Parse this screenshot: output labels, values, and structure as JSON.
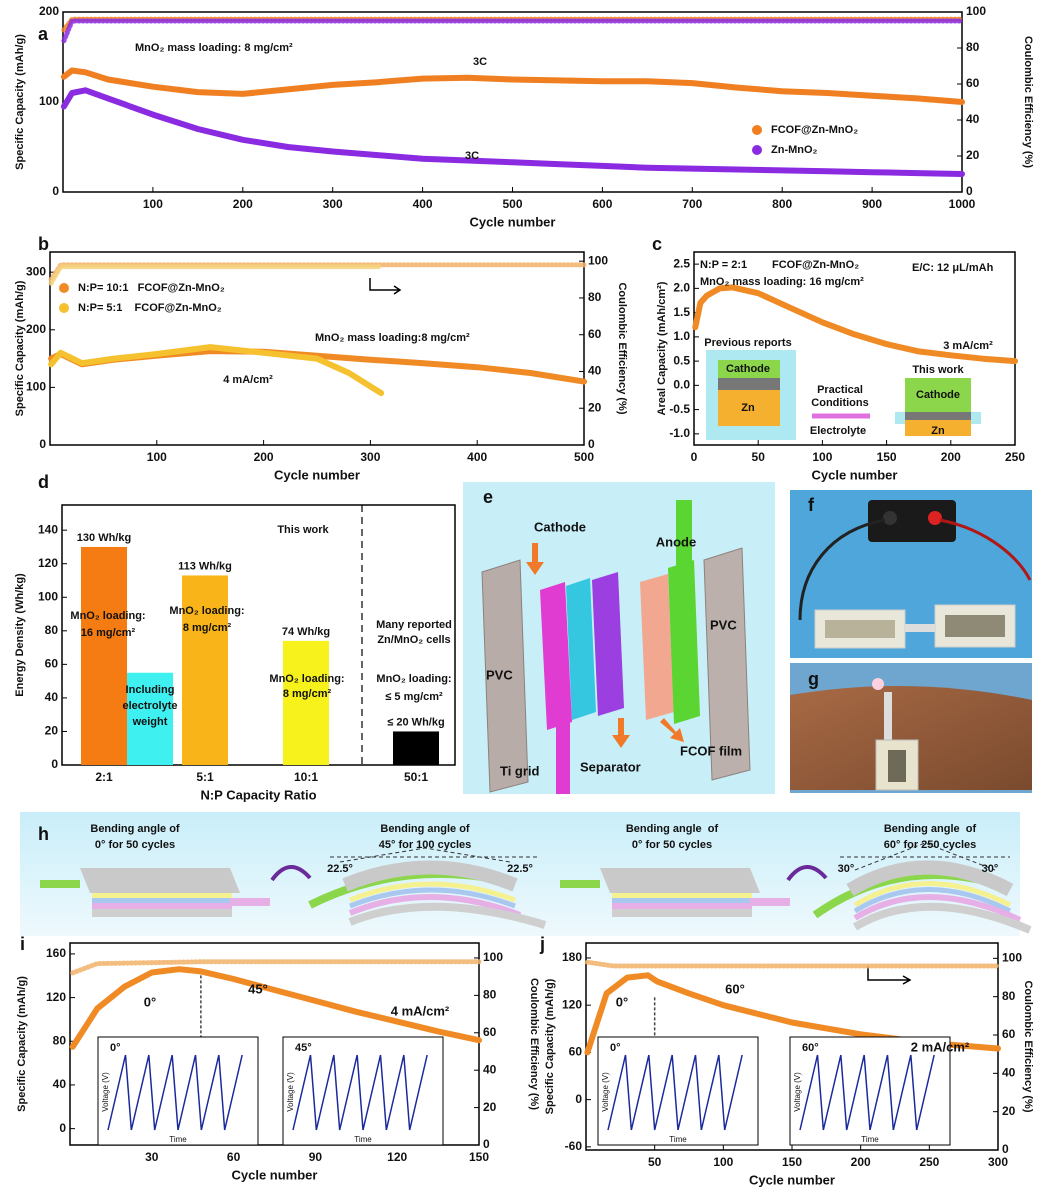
{
  "chart_data": [
    {
      "type": "line",
      "label": "a",
      "xlabel": "Cycle number",
      "ylabel": "Specific Capacity (mAh/g)",
      "y2label": "Coulombic Efficiency (%)",
      "xlim": [
        0,
        1000
      ],
      "xticks": [
        100,
        200,
        300,
        400,
        500,
        600,
        700,
        800,
        900,
        1000
      ],
      "ylim": [
        0,
        200
      ],
      "yticks": [
        0,
        100,
        200
      ],
      "y2lim": [
        0,
        100
      ],
      "y2ticks": [
        0,
        20,
        40,
        60,
        80,
        100
      ],
      "legend": "lower right",
      "x": [
        1,
        10,
        25,
        50,
        100,
        150,
        200,
        250,
        300,
        350,
        400,
        450,
        500,
        550,
        600,
        650,
        700,
        750,
        800,
        850,
        900,
        950,
        1000
      ],
      "series": [
        {
          "name": "FCOF@Zn-MnO₂",
          "color": "#f07f22",
          "values": [
            128,
            135,
            133,
            125,
            117,
            111,
            109,
            114,
            119,
            122,
            126,
            127,
            125,
            124,
            123,
            123,
            121,
            116,
            112,
            110,
            107,
            104,
            100
          ]
        },
        {
          "name": "Zn-MnO₂",
          "color": "#8a2be2",
          "values": [
            95,
            110,
            113,
            104,
            86,
            70,
            58,
            50,
            45,
            41,
            37,
            35,
            33,
            31,
            29,
            27,
            26,
            25,
            24,
            23,
            22,
            21,
            20
          ]
        },
        {
          "axis": "y2",
          "color": "#f07f22",
          "x": [
            1,
            10,
            100,
            200,
            300,
            400,
            500,
            600,
            700,
            800,
            900,
            1000
          ],
          "values": [
            90,
            96,
            96,
            96,
            96,
            96,
            96,
            96,
            96,
            96,
            96,
            96
          ]
        },
        {
          "axis": "y2",
          "color": "#8a2be2",
          "x": [
            1,
            10,
            100,
            200,
            300,
            400,
            500,
            600,
            700,
            800,
            900,
            1000
          ],
          "values": [
            84,
            95,
            95,
            95,
            95,
            95,
            95,
            95,
            95,
            95,
            95,
            95
          ]
        }
      ],
      "annotations": [
        "MnO₂ mass loading: 8 mg/cm²",
        "3C",
        "3C"
      ]
    },
    {
      "type": "line",
      "label": "b",
      "xlabel": "Cycle number",
      "ylabel": "Specific Capacity (mAh/g)",
      "y2label": "Coulombic Efficiency (%)",
      "xlim": [
        0,
        500
      ],
      "xticks": [
        100,
        200,
        300,
        400,
        500
      ],
      "ylim": [
        0,
        335
      ],
      "yticks": [
        0,
        100,
        200,
        300
      ],
      "y2lim": [
        0,
        105
      ],
      "y2ticks": [
        0,
        20,
        40,
        60,
        80,
        100
      ],
      "legend": "upper left",
      "series": [
        {
          "name": "N:P= 10:1   FCOF@Zn-MnO₂",
          "color": "#f08a24",
          "x": [
            1,
            10,
            30,
            60,
            100,
            150,
            200,
            250,
            300,
            350,
            400,
            450,
            500
          ],
          "values": [
            150,
            158,
            140,
            148,
            155,
            163,
            162,
            155,
            148,
            142,
            135,
            125,
            110
          ]
        },
        {
          "name": "N:P= 5:1    FCOF@Zn-MnO₂",
          "color": "#f5c12e",
          "x": [
            1,
            10,
            30,
            60,
            100,
            150,
            200,
            250,
            280,
            310
          ],
          "values": [
            140,
            160,
            142,
            150,
            158,
            170,
            160,
            150,
            125,
            90
          ]
        },
        {
          "axis": "y2",
          "color": "#f2b26a",
          "x": [
            1,
            10,
            100,
            200,
            300,
            400,
            500
          ],
          "values": [
            90,
            98,
            98,
            98,
            98,
            98,
            98
          ]
        },
        {
          "axis": "y2",
          "color": "#f5d27a",
          "x": [
            1,
            10,
            100,
            200,
            310
          ],
          "values": [
            88,
            97,
            97,
            97,
            97
          ]
        }
      ],
      "annotations": [
        "MnO₂ mass loading:8 mg/cm²",
        "4 mA/cm²"
      ]
    },
    {
      "type": "line",
      "label": "c",
      "xlabel": "Cycle number",
      "ylabel": "Areal Capacity (mAh/cm²)",
      "xlim": [
        0,
        250
      ],
      "xticks": [
        0,
        50,
        100,
        150,
        200,
        250
      ],
      "ylim": [
        -1.23,
        2.75
      ],
      "yticks": [
        {
          "value": -1,
          "label": "-1.0"
        },
        -0.5,
        {
          "value": 0,
          "label": "0.0"
        },
        0.5,
        {
          "value": 1,
          "label": "1.0"
        },
        1.5,
        {
          "value": 2,
          "label": "2.0"
        },
        2.5
      ],
      "series": [
        {
          "color": "#f08a24",
          "x": [
            1,
            5,
            10,
            20,
            30,
            50,
            75,
            100,
            125,
            150,
            175,
            200,
            225,
            250
          ],
          "values": [
            1.2,
            1.7,
            1.85,
            2.0,
            2.02,
            1.9,
            1.6,
            1.3,
            1.05,
            0.85,
            0.7,
            0.62,
            0.55,
            0.5
          ]
        }
      ],
      "annotations": [
        "N:P = 2:1",
        "FCOF@Zn-MnO₂",
        "MnO₂ mass loading: 16 mg/cm²",
        "E/C: 12 μL/mAh",
        "3 mA/cm²",
        "Previous reports",
        "Cathode",
        "Zn",
        "Practical",
        "Conditions",
        "This work",
        "Cathode",
        "Zn",
        "Electrolyte"
      ]
    },
    {
      "type": "bar",
      "label": "d",
      "xlabel": "N:P Capacity Ratio",
      "ylabel": "Energy Density (Wh/kg)",
      "ylim": [
        0,
        155
      ],
      "yticks": [
        0,
        20,
        40,
        60,
        80,
        100,
        120,
        140
      ],
      "categories": [
        "2:1",
        null,
        "5:1",
        "10:1",
        "50:1"
      ],
      "values": [
        130,
        55,
        113,
        74,
        20
      ],
      "value_labels": [
        "130 Wh/kg",
        null,
        "113 Wh/kg",
        "74 Wh/kg",
        "≤ 20 Wh/kg"
      ],
      "colors": [
        "#f47c12",
        "#3ff0f0",
        "#f8b418",
        "#f8f21c",
        "#000000"
      ],
      "annotations": [
        "This work",
        "MnO₂ loading:",
        "16 mg/cm²",
        "MnO₂ loading:",
        "8 mg/cm²",
        "MnO₂ loading:",
        "8 mg/cm²",
        "Including",
        "electrolyte",
        "weight",
        "Many reported",
        "Zn/MnO₂ cells",
        "MnO₂ loading:",
        "≤ 5 mg/cm²"
      ]
    },
    {
      "type": "line",
      "label": "i",
      "xlabel": "Cycle number",
      "ylabel": "Specific Capacity (mAh/g)",
      "y2label": "Coulombic Efficiency (%)",
      "xlim": [
        0,
        150
      ],
      "xticks": [
        30,
        60,
        90,
        120,
        150
      ],
      "ylim": [
        -15,
        170
      ],
      "yticks": [
        0,
        40,
        80,
        120,
        160
      ],
      "y2lim": [
        0,
        108
      ],
      "y2ticks": [
        0,
        20,
        40,
        60,
        80,
        100
      ],
      "series": [
        {
          "color": "#f08a24",
          "x": [
            1,
            10,
            20,
            30,
            40,
            48,
            60,
            75,
            90,
            105,
            120,
            135,
            150
          ],
          "values": [
            75,
            110,
            130,
            143,
            146,
            144,
            137,
            127,
            117,
            107,
            98,
            89,
            81
          ]
        },
        {
          "axis": "y2",
          "color": "#f2b26a",
          "x": [
            1,
            10,
            50,
            100,
            150
          ],
          "values": [
            92,
            97,
            98,
            98,
            98
          ]
        }
      ],
      "annotations": [
        "0°",
        "45°",
        "4 mA/cm²",
        "0°",
        "45°",
        "Voltage (V)",
        "Voltage (V)",
        "Time",
        "Time"
      ]
    },
    {
      "type": "line",
      "label": "j",
      "xlabel": "Cycle number",
      "ylabel": "Specific Capacity (mAh/g)",
      "y2label": "Coulombic Efficiency (%)",
      "xlim": [
        0,
        300
      ],
      "xticks": [
        50,
        100,
        150,
        200,
        250,
        300
      ],
      "ylim": [
        -64,
        199
      ],
      "yticks": [
        -60,
        0,
        60,
        120,
        180
      ],
      "y2lim": [
        0,
        108
      ],
      "y2ticks": [
        0,
        20,
        40,
        60,
        80,
        100
      ],
      "series": [
        {
          "color": "#f08a24",
          "x": [
            1,
            15,
            30,
            45,
            52,
            75,
            100,
            150,
            200,
            250,
            300
          ],
          "values": [
            60,
            135,
            155,
            158,
            150,
            135,
            120,
            98,
            83,
            72,
            65
          ]
        },
        {
          "axis": "y2",
          "color": "#f2b26a",
          "x": [
            1,
            20,
            100,
            200,
            300
          ],
          "values": [
            98,
            96,
            96,
            96,
            96
          ]
        }
      ],
      "annotations": [
        "0°",
        "60°",
        "2 mA/cm²",
        "0°",
        "60°",
        "Voltage (V)",
        "Voltage (V)",
        "Time",
        "Time"
      ]
    }
  ],
  "panels": {
    "e": {
      "label": "e",
      "texts": [
        "Cathode",
        "Anode",
        "PVC",
        "PVC",
        "Ti grid",
        "Separator",
        "FCOF film"
      ]
    },
    "f": {
      "label": "f"
    },
    "g": {
      "label": "g"
    },
    "h": {
      "label": "h",
      "texts": [
        "Bending angle of",
        "0° for 50 cycles",
        "Bending angle of",
        "45° for 100 cycles",
        "Bending angle  of",
        "0° for 50 cycles",
        "Bending angle  of",
        "60° for 250 cycles",
        "22.5°",
        "22.5°",
        "30°",
        "30°"
      ]
    }
  }
}
